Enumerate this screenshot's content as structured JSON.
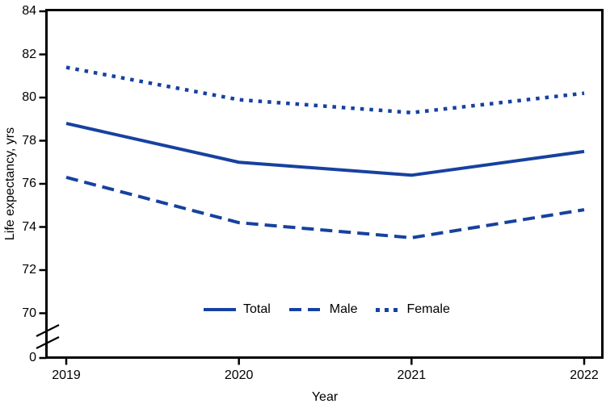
{
  "chart": {
    "y_axis_label": "Life expectancy, yrs",
    "x_axis_label": "Year"
  },
  "legend": {
    "items": [
      {
        "label": "Total",
        "style": "solid"
      },
      {
        "label": "Male",
        "style": "dashed"
      },
      {
        "label": "Female",
        "style": "dotted"
      }
    ]
  },
  "colors": {
    "line": "#16419F",
    "axis": "#000000",
    "text": "#000000",
    "background": "#FFFFFF"
  },
  "chart_data": {
    "type": "line",
    "title": "",
    "categories": [
      "2019",
      "2020",
      "2021",
      "2022"
    ],
    "series": [
      {
        "name": "Total",
        "style": "solid",
        "values": [
          78.8,
          77.0,
          76.4,
          77.5
        ]
      },
      {
        "name": "Male",
        "style": "dashed",
        "values": [
          76.3,
          74.2,
          73.5,
          74.8
        ]
      },
      {
        "name": "Female",
        "style": "dotted",
        "values": [
          81.4,
          79.9,
          79.3,
          80.2
        ]
      }
    ],
    "xlabel": "Year",
    "ylabel": "Life expectancy, yrs",
    "y_ticks": [
      84,
      82,
      80,
      78,
      76,
      74,
      72,
      70,
      0
    ],
    "ylim": [
      69.5,
      84
    ],
    "axis_break_between": [
      0,
      70
    ],
    "grid": false,
    "legend_position": "inside-bottom-center",
    "line_color": "#16419F"
  }
}
